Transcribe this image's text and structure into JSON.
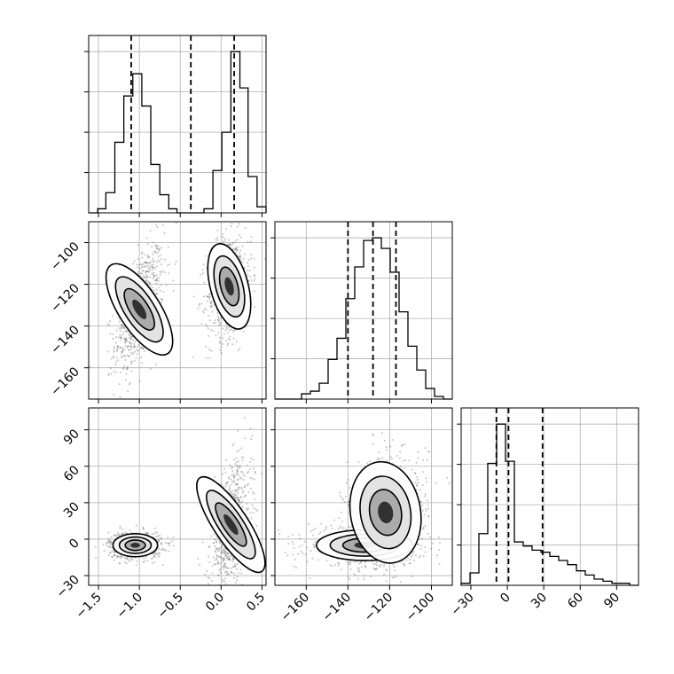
{
  "chart_data": {
    "type": "corner",
    "parameters": [
      {
        "index": 0,
        "range": [
          -1.62,
          0.55
        ],
        "ticks": [
          -1.5,
          -1.0,
          -0.5,
          0.0,
          0.5
        ],
        "tick_labels": [
          "−1.5",
          "−1.0",
          "−0.5",
          "0.0",
          "0.5"
        ]
      },
      {
        "index": 1,
        "range": [
          -175,
          -90
        ],
        "ticks": [
          -160,
          -140,
          -120,
          -100
        ],
        "tick_labels": [
          "−160",
          "−140",
          "−120",
          "−100"
        ]
      },
      {
        "index": 2,
        "range": [
          -38,
          108
        ],
        "ticks": [
          -30,
          0,
          30,
          60,
          90
        ],
        "tick_labels": [
          "−30",
          "0",
          "30",
          "60",
          "90"
        ]
      }
    ],
    "histograms": [
      {
        "param": 0,
        "bin_edges": [
          -1.62,
          -1.51,
          -1.41,
          -1.3,
          -1.19,
          -1.08,
          -0.97,
          -0.86,
          -0.75,
          -0.64,
          -0.54,
          -0.43,
          -0.32,
          -0.21,
          -0.1,
          0.01,
          0.12,
          0.23,
          0.33,
          0.44,
          0.55
        ],
        "counts": [
          0,
          2,
          10,
          35,
          58,
          69,
          53,
          24,
          9,
          2,
          0,
          0,
          0,
          2,
          21,
          40,
          80,
          62,
          18,
          3
        ],
        "quantiles": [
          -1.1,
          -0.37,
          0.16
        ]
      },
      {
        "param": 1,
        "bin_edges": [
          -175,
          -170.75,
          -166.5,
          -162.25,
          -158,
          -153.75,
          -149.5,
          -145.25,
          -141,
          -136.75,
          -132.5,
          -128.25,
          -124,
          -119.75,
          -115.5,
          -111.25,
          -107,
          -102.75,
          -98.5,
          -94.25,
          -90
        ],
        "counts": [
          0,
          0,
          0,
          2,
          3,
          6,
          15,
          23,
          38,
          50,
          60,
          61,
          57,
          48,
          33,
          20,
          11,
          4,
          1,
          0
        ],
        "quantiles": [
          -140,
          -128,
          -117
        ]
      },
      {
        "param": 2,
        "bin_edges": [
          -38,
          -30.7,
          -23.4,
          -16.1,
          -8.8,
          -1.5,
          5.8,
          13.1,
          20.4,
          27.7,
          35,
          42.3,
          49.6,
          56.9,
          64.2,
          71.5,
          78.8,
          86.1,
          93.4,
          100.7,
          108
        ],
        "counts": [
          1,
          6,
          25,
          59,
          78,
          60,
          21,
          19,
          17,
          16,
          14,
          12,
          10,
          7,
          5,
          3,
          2,
          1,
          1,
          0
        ],
        "quantiles": [
          -9,
          1,
          29
        ]
      }
    ],
    "pairs": [
      {
        "x_param": 0,
        "y_param": 1,
        "clusters": [
          {
            "center": [
              -1.0,
              -132
            ],
            "spread": [
              0.12,
              12
            ],
            "correlation": 0.55
          },
          {
            "center": [
              0.1,
              -121
            ],
            "spread": [
              0.11,
              10
            ],
            "correlation": 0.2
          }
        ]
      },
      {
        "x_param": 0,
        "y_param": 2,
        "clusters": [
          {
            "center": [
              -1.05,
              -5
            ],
            "spread": [
              0.13,
              4.5
            ],
            "correlation": 0.0
          },
          {
            "center": [
              0.12,
              12
            ],
            "spread": [
              0.1,
              22
            ],
            "correlation": 0.45
          }
        ]
      },
      {
        "x_param": 1,
        "y_param": 2,
        "clusters": [
          {
            "center": [
              -132,
              -5
            ],
            "spread": [
              11,
              6
            ],
            "correlation": 0.0
          },
          {
            "center": [
              -122,
              22
            ],
            "spread": [
              8,
              20
            ],
            "correlation": 0.2
          }
        ]
      }
    ]
  }
}
